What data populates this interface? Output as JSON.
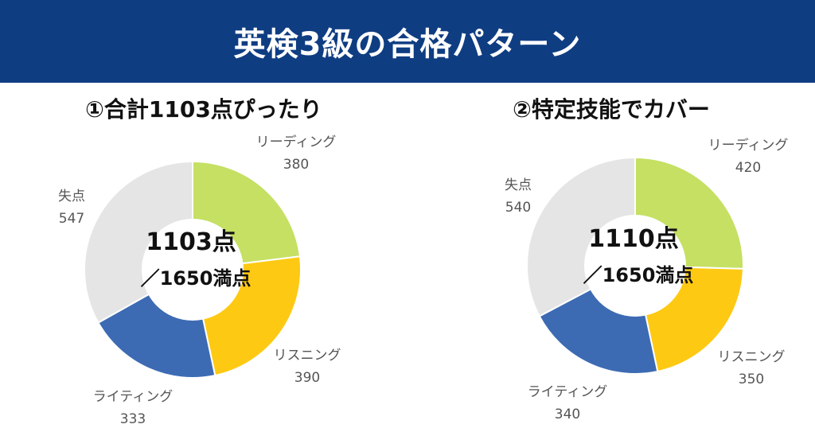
{
  "header": {
    "title": "英検3級の合格パターン"
  },
  "chart_data": [
    {
      "type": "pie",
      "title": "①合計1103点ぴったり",
      "center_line1": "1103点",
      "center_line2": "／1650満点",
      "categories": [
        "リーディング",
        "リスニング",
        "ライティング",
        "失点"
      ],
      "values": [
        380,
        390,
        333,
        547
      ],
      "value_labels": [
        "380",
        "390",
        "333",
        "547"
      ],
      "colors": [
        "#c5e063",
        "#fec913",
        "#3d6bb3",
        "#e5e5e5"
      ]
    },
    {
      "type": "pie",
      "title": "②特定技能でカバー",
      "center_line1": "1110点",
      "center_line2": "／1650満点",
      "categories": [
        "リーディング",
        "リスニング",
        "ライティング",
        "失点"
      ],
      "values": [
        420,
        350,
        340,
        540
      ],
      "value_labels": [
        "420",
        "350",
        "340",
        "540"
      ],
      "colors": [
        "#c5e063",
        "#fec913",
        "#3d6bb3",
        "#e5e5e5"
      ]
    }
  ]
}
